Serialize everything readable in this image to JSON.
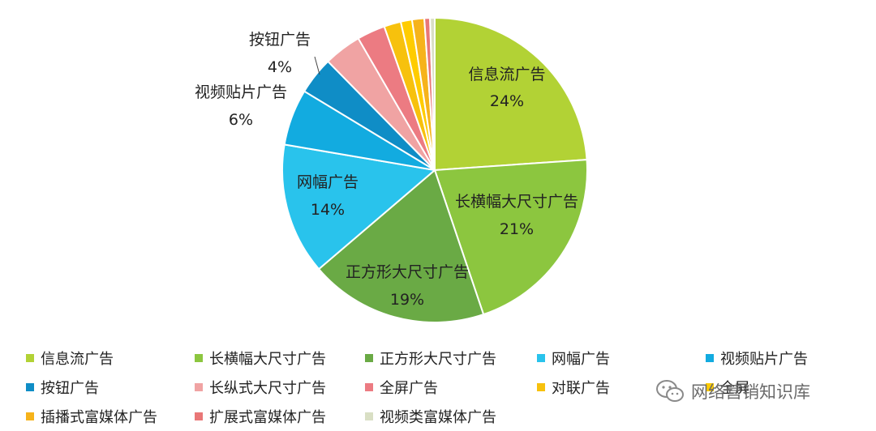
{
  "chart_data": {
    "type": "pie",
    "title": "",
    "series": [
      {
        "name": "信息流广告",
        "value": 24,
        "label": "信息流广告",
        "pct": "24%",
        "color": "#b2d235"
      },
      {
        "name": "长横幅大尺寸广告",
        "value": 21,
        "label": "长横幅大尺寸广告",
        "pct": "21%",
        "color": "#8cc63f"
      },
      {
        "name": "正方形大尺寸广告",
        "value": 19,
        "label": "正方形大尺寸广告",
        "pct": "19%",
        "color": "#6aaa45"
      },
      {
        "name": "网幅广告",
        "value": 14,
        "label": "网幅广告",
        "pct": "14%",
        "color": "#29c3ec"
      },
      {
        "name": "视频贴片广告",
        "value": 6,
        "label": "视频贴片广告",
        "pct": "6%",
        "color": "#12abe0"
      },
      {
        "name": "按钮广告",
        "value": 4,
        "label": "按钮广告",
        "pct": "4%",
        "color": "#0f8dc6"
      },
      {
        "name": "长纵式大尺寸广告",
        "value": 4,
        "color": "#f0a3a3"
      },
      {
        "name": "全屏广告",
        "value": 3,
        "color": "#ec7b82"
      },
      {
        "name": "对联广告",
        "value": 1.8,
        "color": "#f7c10d"
      },
      {
        "name": "全屏",
        "value": 1.2,
        "color": "#ffcc00"
      },
      {
        "name": "插播式富媒体广告",
        "value": 1.3,
        "color": "#f6b31b"
      },
      {
        "name": "扩展式富媒体广告",
        "value": 0.6,
        "color": "#e97777"
      },
      {
        "name": "视频类富媒体广告",
        "value": 0.5,
        "color": "#d9dfc4"
      }
    ],
    "legend_position": "bottom",
    "legend": [
      {
        "label": "信息流广告",
        "color": "#b2d235"
      },
      {
        "label": "长横幅大尺寸广告",
        "color": "#8cc63f"
      },
      {
        "label": "正方形大尺寸广告",
        "color": "#6aaa45"
      },
      {
        "label": "网幅广告",
        "color": "#29c3ec"
      },
      {
        "label": "视频贴片广告",
        "color": "#12abe0"
      },
      {
        "label": "按钮广告",
        "color": "#0f8dc6"
      },
      {
        "label": "长纵式大尺寸广告",
        "color": "#f0a3a3"
      },
      {
        "label": "全屏广告",
        "color": "#ec7b82"
      },
      {
        "label": "对联广告",
        "color": "#f7c10d"
      },
      {
        "label": "全屏",
        "color": "#ffcc00"
      },
      {
        "label": "插播式富媒体广告",
        "color": "#f6b31b"
      },
      {
        "label": "扩展式富媒体广告",
        "color": "#e97777"
      },
      {
        "label": "视频类富媒体广告",
        "color": "#d9dfc4"
      }
    ]
  },
  "watermark": {
    "text": "网络营销知识库",
    "icon": "wechat-icon"
  }
}
